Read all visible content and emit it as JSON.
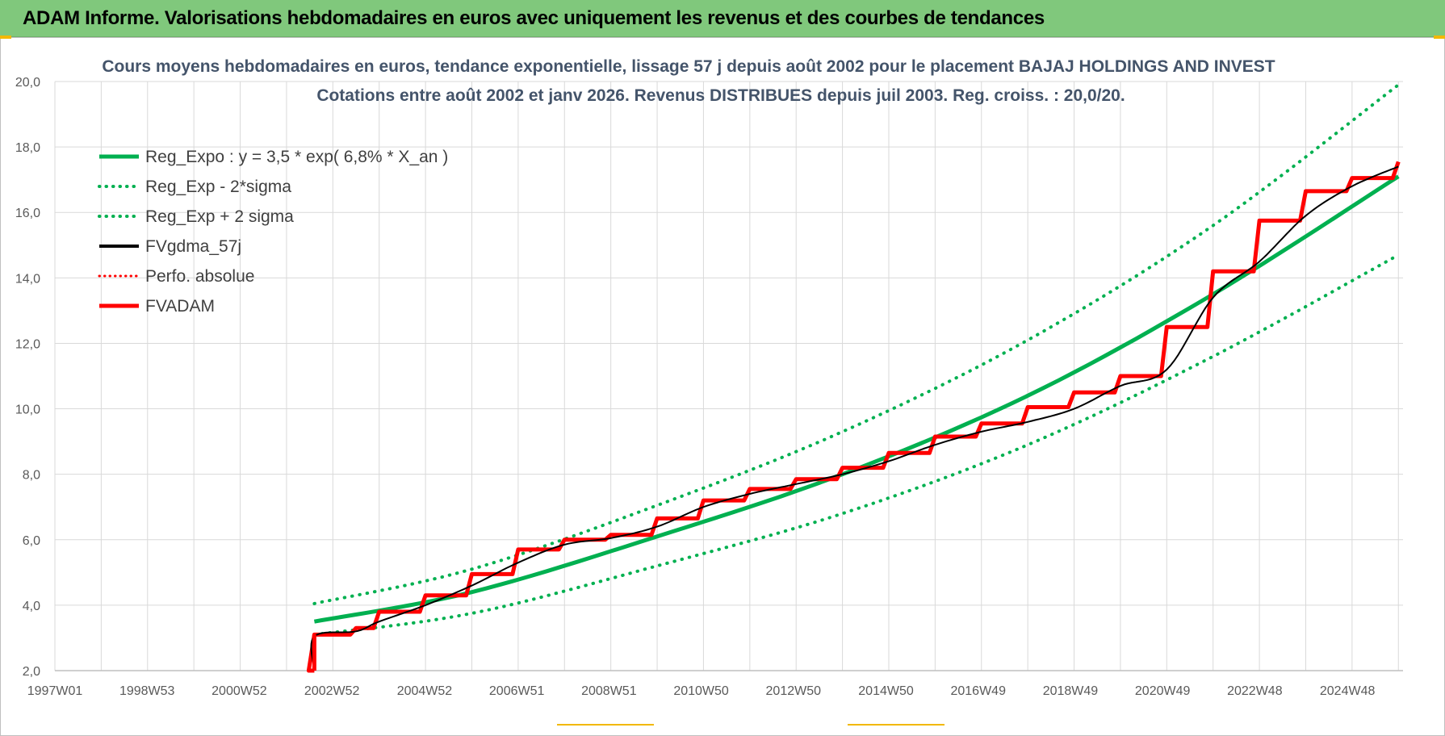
{
  "banner": {
    "title": "ADAM Informe. Valorisations hebdomadaires en euros avec uniquement les revenus et des courbes de tendances"
  },
  "colors": {
    "banner_bg": "#80c87c",
    "green": "#00b050",
    "black": "#000000",
    "red": "#ff0000",
    "grid": "#d9d9d9",
    "title_text": "#44546a"
  },
  "chart_data": {
    "type": "line",
    "title": "Cours moyens hebdomadaires en euros, tendance exponentielle, lissage 57 j depuis août 2002 pour le placement BAJAJ HOLDINGS AND INVEST",
    "subtitle": "Cotations entre août 2002 et janv 2026.  Revenus DISTRIBUES depuis juil 2003.  Reg. croiss. : 20,0/20.",
    "xlabel": "",
    "ylabel": "",
    "x_range": [
      1997.0,
      2026.1
    ],
    "ylim": [
      2.0,
      20.0
    ],
    "y_ticks": [
      "2,0",
      "4,0",
      "6,0",
      "8,0",
      "10,0",
      "12,0",
      "14,0",
      "16,0",
      "18,0",
      "20,0"
    ],
    "x_ticks": [
      {
        "label": "1997W01",
        "year": 1997.0
      },
      {
        "label": "1998W53",
        "year": 1998.99
      },
      {
        "label": "2000W52",
        "year": 2000.98
      },
      {
        "label": "2002W52",
        "year": 2002.98
      },
      {
        "label": "2004W52",
        "year": 2004.98
      },
      {
        "label": "2006W51",
        "year": 2006.97
      },
      {
        "label": "2008W51",
        "year": 2008.96
      },
      {
        "label": "2010W50",
        "year": 2010.95
      },
      {
        "label": "2012W50",
        "year": 2012.94
      },
      {
        "label": "2014W50",
        "year": 2014.94
      },
      {
        "label": "2016W49",
        "year": 2016.93
      },
      {
        "label": "2018W49",
        "year": 2018.92
      },
      {
        "label": "2020W49",
        "year": 2020.91
      },
      {
        "label": "2022W48",
        "year": 2022.9
      },
      {
        "label": "2024W48",
        "year": 2024.9
      }
    ],
    "grid": true,
    "legend_position": "top-left",
    "series": [
      {
        "name": "Reg_Expo : y = 3,5 * exp( 6,8% *  X_an )",
        "style": "solid",
        "color": "#00b050",
        "x": [
          2002.6,
          2006.0,
          2010.0,
          2014.0,
          2018.0,
          2022.0,
          2026.0
        ],
        "y": [
          3.5,
          4.4,
          6.1,
          8.0,
          10.4,
          13.5,
          17.1
        ]
      },
      {
        "name": "Reg_Exp - 2*sigma",
        "style": "dotted",
        "color": "#00b050",
        "x": [
          2002.6,
          2006.0,
          2010.0,
          2014.0,
          2018.0,
          2022.0,
          2026.0
        ],
        "y": [
          3.1,
          3.75,
          5.2,
          6.8,
          8.9,
          11.6,
          14.7
        ]
      },
      {
        "name": "Reg_Exp + 2 sigma",
        "style": "dotted",
        "color": "#00b050",
        "x": [
          2002.6,
          2006.0,
          2010.0,
          2014.0,
          2018.0,
          2022.0,
          2026.0
        ],
        "y": [
          4.05,
          5.1,
          7.05,
          9.3,
          12.1,
          15.6,
          19.9
        ]
      },
      {
        "name": "FVgdma_57j",
        "style": "solid",
        "color": "#000000",
        "x": [
          2002.6,
          2002.6,
          2003.5,
          2004.0,
          2005.0,
          2006.0,
          2007.0,
          2008.0,
          2009.0,
          2010.0,
          2011.0,
          2012.0,
          2013.0,
          2014.0,
          2015.0,
          2016.0,
          2017.0,
          2018.0,
          2019.0,
          2020.0,
          2021.0,
          2022.0,
          2023.0,
          2024.0,
          2025.0,
          2026.0
        ],
        "y": [
          2.0,
          3.05,
          3.2,
          3.5,
          4.0,
          4.6,
          5.3,
          5.85,
          6.05,
          6.4,
          7.0,
          7.4,
          7.7,
          8.0,
          8.4,
          8.9,
          9.3,
          9.6,
          10.0,
          10.7,
          11.2,
          13.4,
          14.5,
          15.9,
          16.8,
          17.4
        ]
      },
      {
        "name": "Perfo. absolue",
        "style": "dotted",
        "color": "#ff0000",
        "x": [],
        "y": []
      },
      {
        "name": "FVADAM",
        "style": "solid-step",
        "color": "#ff0000",
        "x": [
          2002.6,
          2002.6,
          2003.5,
          2004.0,
          2005.0,
          2006.0,
          2007.0,
          2008.0,
          2009.0,
          2010.0,
          2011.0,
          2012.0,
          2013.0,
          2014.0,
          2015.0,
          2016.0,
          2017.0,
          2018.0,
          2019.0,
          2020.0,
          2021.0,
          2022.0,
          2023.0,
          2024.0,
          2025.0,
          2026.0
        ],
        "y": [
          2.0,
          3.1,
          3.3,
          3.8,
          4.3,
          4.95,
          5.7,
          6.0,
          6.15,
          6.65,
          7.2,
          7.55,
          7.85,
          8.2,
          8.65,
          9.15,
          9.55,
          10.05,
          10.5,
          11.0,
          12.5,
          14.2,
          15.75,
          16.65,
          17.05,
          17.55
        ]
      }
    ]
  }
}
